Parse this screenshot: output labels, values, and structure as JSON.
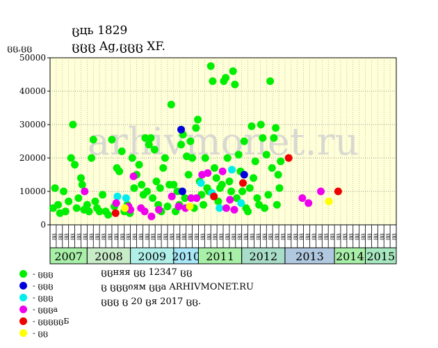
{
  "header": {
    "title": "ცць 1829",
    "subtitle": "ცცც Ag,ცცც XF.",
    "ylabel": "ცც,ცც"
  },
  "watermark": "arhivmonet.ru",
  "legend": [
    {
      "label": "- ცცც",
      "color": "#00ee00"
    },
    {
      "label": "- ცცც",
      "color": "#0000dd"
    },
    {
      "label": "- ცცც",
      "color": "#00eeee"
    },
    {
      "label": "- ცცცa",
      "color": "#ee00ee"
    },
    {
      "label": "- ცცცცცБ",
      "color": "#ee0000"
    },
    {
      "label": "- ცც",
      "color": "#ffff00"
    }
  ],
  "notes": [
    "ცცняя ცც 12347 ცც",
    "ც ცცციям ცცa ARHIVMONET.RU",
    "ცცც ც 20 ცя 2017 ცც."
  ],
  "chart_data": {
    "type": "scatter",
    "ylabel": "ცც,ცც",
    "ylim": [
      0,
      50000
    ],
    "yticks": [
      0,
      10000,
      20000,
      30000,
      40000,
      50000
    ],
    "grid": true,
    "years": [
      {
        "label": "2007",
        "months": 6
      },
      {
        "label": "2008",
        "months": 7
      },
      {
        "label": "2009",
        "months": 7
      },
      {
        "label": "2010",
        "months": 4
      },
      {
        "label": "2011",
        "months": 7
      },
      {
        "label": "2012",
        "months": 7
      },
      {
        "label": "2013",
        "months": 8
      },
      {
        "label": "2014",
        "months": 5
      },
      {
        "label": "2015",
        "months": 5
      }
    ],
    "month_labels": [
      "ცც",
      "ცც",
      "ცც",
      "ცც",
      "ცც",
      "ცც",
      "ცც",
      "ცც",
      "ცც",
      "ცც",
      "ცც",
      "ცც",
      "ცც",
      "ცც",
      "ცც",
      "ცც",
      "ცც",
      "ცც",
      "ცც",
      "ცც",
      "ცც",
      "ცც",
      "ცც",
      "ცც",
      "ცც",
      "ცც",
      "ცც",
      "ცც",
      "ცც",
      "ცც",
      "ცც",
      "ცც",
      "ცც",
      "ცც",
      "ცც",
      "ცც",
      "ცც",
      "ცც",
      "ცც",
      "ცც",
      "ცც",
      "ცც",
      "ცც",
      "ცც",
      "ცც",
      "ცც",
      "ცც",
      "ცც",
      "ცც",
      "ცც",
      "ცც",
      "ცც",
      "ცც",
      "ცც",
      "ცც",
      "ცც"
    ],
    "series": [
      {
        "key": "green",
        "color": "#00ee00",
        "points": [
          [
            0.5,
            5000
          ],
          [
            0.8,
            11000
          ],
          [
            1.3,
            6000
          ],
          [
            1.6,
            3500
          ],
          [
            2.2,
            10000
          ],
          [
            2.5,
            4000
          ],
          [
            3.0,
            7000
          ],
          [
            3.4,
            20000
          ],
          [
            3.7,
            30000
          ],
          [
            4.0,
            18000
          ],
          [
            4.3,
            5000
          ],
          [
            4.6,
            8000
          ],
          [
            5.0,
            14000
          ],
          [
            5.2,
            12000
          ],
          [
            5.5,
            4500
          ],
          [
            6.0,
            6000
          ],
          [
            6.3,
            4000
          ],
          [
            6.7,
            20000
          ],
          [
            7.0,
            25500
          ],
          [
            7.3,
            7000
          ],
          [
            7.6,
            5000
          ],
          [
            8.0,
            4000
          ],
          [
            8.5,
            9000
          ],
          [
            9.0,
            4000
          ],
          [
            9.4,
            3000
          ],
          [
            10.0,
            25500
          ],
          [
            10.4,
            5500
          ],
          [
            10.8,
            17000
          ],
          [
            11.2,
            16000
          ],
          [
            11.6,
            22000
          ],
          [
            12.0,
            4000
          ],
          [
            12.5,
            6000
          ],
          [
            12.9,
            3500
          ],
          [
            13.3,
            20000
          ],
          [
            13.6,
            11000
          ],
          [
            14.0,
            15000
          ],
          [
            14.4,
            18000
          ],
          [
            14.8,
            12000
          ],
          [
            15.1,
            9000
          ],
          [
            15.4,
            26000
          ],
          [
            15.7,
            10000
          ],
          [
            16.0,
            24000
          ],
          [
            16.3,
            26000
          ],
          [
            16.6,
            8000
          ],
          [
            16.9,
            22500
          ],
          [
            17.2,
            13000
          ],
          [
            17.5,
            6000
          ],
          [
            17.8,
            11000
          ],
          [
            18.0,
            4000
          ],
          [
            18.3,
            17000
          ],
          [
            18.6,
            20000
          ],
          [
            19.0,
            5500
          ],
          [
            19.3,
            12000
          ],
          [
            19.6,
            36000
          ],
          [
            20.0,
            12000
          ],
          [
            20.3,
            4000
          ],
          [
            20.6,
            10000
          ],
          [
            20.9,
            6000
          ],
          [
            21.2,
            24000
          ],
          [
            21.5,
            27000
          ],
          [
            21.8,
            8000
          ],
          [
            22.1,
            20500
          ],
          [
            22.4,
            15000
          ],
          [
            22.7,
            25000
          ],
          [
            23.0,
            20000
          ],
          [
            23.3,
            5000
          ],
          [
            23.6,
            29000
          ],
          [
            23.9,
            31500
          ],
          [
            24.2,
            13000
          ],
          [
            24.5,
            9000
          ],
          [
            24.8,
            6000
          ],
          [
            25.1,
            20000
          ],
          [
            25.4,
            11000
          ],
          [
            25.7,
            10000
          ],
          [
            26.0,
            47500
          ],
          [
            26.3,
            43000
          ],
          [
            26.6,
            17000
          ],
          [
            26.9,
            14000
          ],
          [
            27.2,
            7000
          ],
          [
            27.5,
            11000
          ],
          [
            27.8,
            12000
          ],
          [
            28.1,
            43000
          ],
          [
            28.4,
            44000
          ],
          [
            28.7,
            20000
          ],
          [
            29.0,
            13000
          ],
          [
            29.3,
            10000
          ],
          [
            29.6,
            46000
          ],
          [
            29.9,
            42000
          ],
          [
            30.2,
            8000
          ],
          [
            30.5,
            21000
          ],
          [
            30.8,
            16000
          ],
          [
            31.1,
            10000
          ],
          [
            31.4,
            25000
          ],
          [
            31.7,
            5000
          ],
          [
            32.0,
            4000
          ],
          [
            32.3,
            11000
          ],
          [
            32.6,
            29500
          ],
          [
            32.9,
            14000
          ],
          [
            33.2,
            19000
          ],
          [
            33.5,
            8000
          ],
          [
            33.8,
            6000
          ],
          [
            34.1,
            30000
          ],
          [
            34.4,
            26000
          ],
          [
            34.7,
            5000
          ],
          [
            35.0,
            21000
          ],
          [
            35.3,
            9000
          ],
          [
            35.6,
            43000
          ],
          [
            35.9,
            17000
          ],
          [
            36.2,
            26000
          ],
          [
            36.5,
            29000
          ],
          [
            36.7,
            6000
          ],
          [
            36.9,
            15000
          ],
          [
            37.1,
            11000
          ],
          [
            37.3,
            19000
          ]
        ]
      },
      {
        "key": "blue",
        "color": "#0000dd",
        "points": [
          [
            21.2,
            28500
          ],
          [
            21.4,
            10000
          ],
          [
            31.4,
            15000
          ]
        ]
      },
      {
        "key": "cyan",
        "color": "#00eeee",
        "points": [
          [
            10.9,
            8500
          ],
          [
            12.3,
            8000
          ],
          [
            24.4,
            12500
          ],
          [
            26.2,
            9500
          ],
          [
            27.4,
            5000
          ],
          [
            29.4,
            16500
          ],
          [
            30.9,
            6500
          ]
        ]
      },
      {
        "key": "magenta",
        "color": "#ee00ee",
        "points": [
          [
            5.6,
            10000
          ],
          [
            10.7,
            6500
          ],
          [
            12.7,
            5500
          ],
          [
            13.0,
            4500
          ],
          [
            13.5,
            14500
          ],
          [
            14.7,
            5000
          ],
          [
            15.3,
            4000
          ],
          [
            16.4,
            2500
          ],
          [
            17.6,
            4500
          ],
          [
            19.7,
            8500
          ],
          [
            20.8,
            5500
          ],
          [
            21.9,
            5000
          ],
          [
            22.8,
            8000
          ],
          [
            23.7,
            8000
          ],
          [
            24.6,
            15000
          ],
          [
            25.5,
            15500
          ],
          [
            27.9,
            16000
          ],
          [
            28.5,
            5000
          ],
          [
            29.1,
            7500
          ],
          [
            29.8,
            4500
          ],
          [
            40.8,
            8000
          ],
          [
            41.8,
            6500
          ],
          [
            43.8,
            10000
          ]
        ]
      },
      {
        "key": "red",
        "color": "#ee0000",
        "points": [
          [
            10.6,
            3500
          ],
          [
            26.5,
            8500
          ],
          [
            31.2,
            12500
          ],
          [
            38.6,
            20000
          ],
          [
            46.6,
            10000
          ]
        ]
      },
      {
        "key": "yellow",
        "color": "#ffff00",
        "points": [
          [
            12.1,
            5000
          ],
          [
            22.6,
            5500
          ],
          [
            45.1,
            7000
          ]
        ]
      }
    ]
  }
}
